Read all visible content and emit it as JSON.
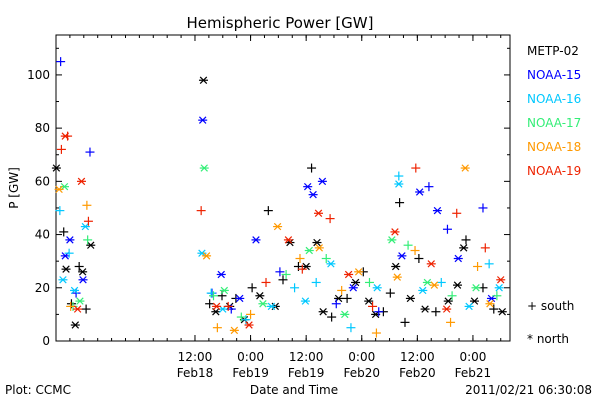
{
  "chart_data": {
    "type": "scatter",
    "title": "Hemispheric Power [GW]",
    "xlabel": "Date and Time",
    "ylabel": "P [GW]",
    "xlim": [
      "2011-02-17 06:00",
      "2011-02-21 08:00"
    ],
    "ylim": [
      0,
      115
    ],
    "y_ticks": [
      0,
      20,
      40,
      60,
      80,
      100
    ],
    "x_ticks": [
      {
        "top": "12:00",
        "bottom": "Feb18",
        "t": "2011-02-18 12:00"
      },
      {
        "top": "0:00",
        "bottom": "Feb19",
        "t": "2011-02-19 00:00"
      },
      {
        "top": "12:00",
        "bottom": "Feb19",
        "t": "2011-02-19 12:00"
      },
      {
        "top": "0:00",
        "bottom": "Feb20",
        "t": "2011-02-20 00:00"
      },
      {
        "top": "12:00",
        "bottom": "Feb20",
        "t": "2011-02-20 12:00"
      },
      {
        "top": "0:00",
        "bottom": "Feb21",
        "t": "2011-02-21 00:00"
      }
    ],
    "grid": false,
    "legend_position": "right",
    "series": [
      {
        "name": "METP-02",
        "color": "#000000",
        "points": [
          {
            "t": "2011-02-17 06:05",
            "y": 65,
            "h": "north"
          },
          {
            "t": "2011-02-17 07:40",
            "y": 41,
            "h": "south"
          },
          {
            "t": "2011-02-17 08:10",
            "y": 27,
            "h": "north"
          },
          {
            "t": "2011-02-17 09:20",
            "y": 14,
            "h": "south"
          },
          {
            "t": "2011-02-17 10:10",
            "y": 6,
            "h": "north"
          },
          {
            "t": "2011-02-17 11:00",
            "y": 28,
            "h": "south"
          },
          {
            "t": "2011-02-17 11:45",
            "y": 26,
            "h": "north"
          },
          {
            "t": "2011-02-17 12:30",
            "y": 12,
            "h": "south"
          },
          {
            "t": "2011-02-17 13:30",
            "y": 36,
            "h": "north"
          },
          {
            "t": "2011-02-18 13:50",
            "y": 98,
            "h": "north"
          },
          {
            "t": "2011-02-18 15:10",
            "y": 14,
            "h": "south"
          },
          {
            "t": "2011-02-18 16:30",
            "y": 11,
            "h": "north"
          },
          {
            "t": "2011-02-18 17:50",
            "y": 17,
            "h": "south"
          },
          {
            "t": "2011-02-18 19:30",
            "y": 13,
            "h": "north"
          },
          {
            "t": "2011-02-18 20:50",
            "y": 16,
            "h": "south"
          },
          {
            "t": "2011-02-18 22:40",
            "y": 8,
            "h": "north"
          },
          {
            "t": "2011-02-19 00:20",
            "y": 20,
            "h": "south"
          },
          {
            "t": "2011-02-19 02:00",
            "y": 17,
            "h": "north"
          },
          {
            "t": "2011-02-19 03:50",
            "y": 49,
            "h": "south"
          },
          {
            "t": "2011-02-19 05:20",
            "y": 13,
            "h": "north"
          },
          {
            "t": "2011-02-19 07:00",
            "y": 23,
            "h": "south"
          },
          {
            "t": "2011-02-19 08:30",
            "y": 37,
            "h": "north"
          },
          {
            "t": "2011-02-19 10:20",
            "y": 28,
            "h": "south"
          },
          {
            "t": "2011-02-19 12:00",
            "y": 28,
            "h": "north"
          },
          {
            "t": "2011-02-19 13:10",
            "y": 65,
            "h": "south"
          },
          {
            "t": "2011-02-19 14:20",
            "y": 37,
            "h": "north"
          },
          {
            "t": "2011-02-19 15:40",
            "y": 11,
            "h": "north"
          },
          {
            "t": "2011-02-19 17:30",
            "y": 9,
            "h": "south"
          },
          {
            "t": "2011-02-19 19:00",
            "y": 16,
            "h": "north"
          },
          {
            "t": "2011-02-19 20:50",
            "y": 16,
            "h": "south"
          },
          {
            "t": "2011-02-19 22:40",
            "y": 22,
            "h": "north"
          },
          {
            "t": "2011-02-20 00:20",
            "y": 26,
            "h": "south"
          },
          {
            "t": "2011-02-20 01:30",
            "y": 15,
            "h": "north"
          },
          {
            "t": "2011-02-20 03:00",
            "y": 10,
            "h": "north"
          },
          {
            "t": "2011-02-20 04:40",
            "y": 11,
            "h": "south"
          },
          {
            "t": "2011-02-20 06:10",
            "y": 18,
            "h": "south"
          },
          {
            "t": "2011-02-20 07:20",
            "y": 28,
            "h": "north"
          },
          {
            "t": "2011-02-20 08:10",
            "y": 52,
            "h": "south"
          },
          {
            "t": "2011-02-20 09:20",
            "y": 7,
            "h": "south"
          },
          {
            "t": "2011-02-20 10:30",
            "y": 16,
            "h": "north"
          },
          {
            "t": "2011-02-20 12:20",
            "y": 31,
            "h": "south"
          },
          {
            "t": "2011-02-20 13:40",
            "y": 12,
            "h": "north"
          },
          {
            "t": "2011-02-20 16:00",
            "y": 11,
            "h": "south"
          },
          {
            "t": "2011-02-20 18:40",
            "y": 15,
            "h": "north"
          },
          {
            "t": "2011-02-20 20:40",
            "y": 21,
            "h": "north"
          },
          {
            "t": "2011-02-20 22:00",
            "y": 35,
            "h": "north"
          },
          {
            "t": "2011-02-20 22:30",
            "y": 38,
            "h": "south"
          },
          {
            "t": "2011-02-21 00:20",
            "y": 15,
            "h": "north"
          },
          {
            "t": "2011-02-21 02:10",
            "y": 20,
            "h": "south"
          },
          {
            "t": "2011-02-21 04:30",
            "y": 12,
            "h": "south"
          },
          {
            "t": "2011-02-21 06:20",
            "y": 11,
            "h": "north"
          }
        ]
      },
      {
        "name": "NOAA-15",
        "color": "#0000ff",
        "points": [
          {
            "t": "2011-02-17 07:00",
            "y": 105,
            "h": "south"
          },
          {
            "t": "2011-02-17 08:00",
            "y": 32,
            "h": "north"
          },
          {
            "t": "2011-02-17 09:00",
            "y": 38,
            "h": "north"
          },
          {
            "t": "2011-02-17 10:20",
            "y": 18,
            "h": "south"
          },
          {
            "t": "2011-02-17 11:50",
            "y": 23,
            "h": "north"
          },
          {
            "t": "2011-02-17 13:20",
            "y": 71,
            "h": "south"
          },
          {
            "t": "2011-02-18 13:40",
            "y": 83,
            "h": "north"
          },
          {
            "t": "2011-02-18 15:40",
            "y": 18,
            "h": "south"
          },
          {
            "t": "2011-02-18 17:40",
            "y": 25,
            "h": "north"
          },
          {
            "t": "2011-02-18 19:50",
            "y": 12,
            "h": "south"
          },
          {
            "t": "2011-02-18 21:40",
            "y": 16,
            "h": "north"
          },
          {
            "t": "2011-02-19 01:10",
            "y": 38,
            "h": "north"
          },
          {
            "t": "2011-02-19 06:20",
            "y": 26,
            "h": "south"
          },
          {
            "t": "2011-02-19 12:20",
            "y": 58,
            "h": "north"
          },
          {
            "t": "2011-02-19 13:30",
            "y": 55,
            "h": "north"
          },
          {
            "t": "2011-02-19 15:30",
            "y": 60,
            "h": "north"
          },
          {
            "t": "2011-02-19 18:30",
            "y": 14,
            "h": "south"
          },
          {
            "t": "2011-02-19 22:10",
            "y": 20,
            "h": "north"
          },
          {
            "t": "2011-02-20 03:40",
            "y": 11,
            "h": "south"
          },
          {
            "t": "2011-02-20 08:40",
            "y": 32,
            "h": "north"
          },
          {
            "t": "2011-02-20 12:30",
            "y": 56,
            "h": "north"
          },
          {
            "t": "2011-02-20 14:30",
            "y": 58,
            "h": "south"
          },
          {
            "t": "2011-02-20 16:20",
            "y": 49,
            "h": "north"
          },
          {
            "t": "2011-02-20 18:30",
            "y": 42,
            "h": "south"
          },
          {
            "t": "2011-02-20 20:50",
            "y": 31,
            "h": "north"
          },
          {
            "t": "2011-02-21 02:10",
            "y": 50,
            "h": "south"
          },
          {
            "t": "2011-02-21 04:00",
            "y": 16,
            "h": "north"
          }
        ]
      },
      {
        "name": "NOAA-16",
        "color": "#00c8ff",
        "points": [
          {
            "t": "2011-02-17 06:50",
            "y": 49,
            "h": "south"
          },
          {
            "t": "2011-02-17 07:30",
            "y": 23,
            "h": "north"
          },
          {
            "t": "2011-02-17 08:50",
            "y": 33,
            "h": "south"
          },
          {
            "t": "2011-02-17 10:00",
            "y": 19,
            "h": "north"
          },
          {
            "t": "2011-02-17 12:20",
            "y": 43,
            "h": "north"
          },
          {
            "t": "2011-02-18 13:30",
            "y": 33,
            "h": "north"
          },
          {
            "t": "2011-02-18 15:30",
            "y": 18,
            "h": "south"
          },
          {
            "t": "2011-02-18 18:00",
            "y": 12,
            "h": "north"
          },
          {
            "t": "2011-02-18 23:00",
            "y": 8,
            "h": "south"
          },
          {
            "t": "2011-02-19 04:30",
            "y": 13,
            "h": "north"
          },
          {
            "t": "2011-02-19 09:30",
            "y": 20,
            "h": "south"
          },
          {
            "t": "2011-02-19 11:50",
            "y": 15,
            "h": "north"
          },
          {
            "t": "2011-02-19 14:10",
            "y": 22,
            "h": "south"
          },
          {
            "t": "2011-02-19 17:20",
            "y": 29,
            "h": "north"
          },
          {
            "t": "2011-02-19 21:40",
            "y": 5,
            "h": "south"
          },
          {
            "t": "2011-02-20 03:20",
            "y": 20,
            "h": "north"
          },
          {
            "t": "2011-02-20 08:00",
            "y": 62,
            "h": "south"
          },
          {
            "t": "2011-02-20 08:00",
            "y": 59,
            "h": "north"
          },
          {
            "t": "2011-02-20 13:10",
            "y": 19,
            "h": "north"
          },
          {
            "t": "2011-02-20 17:10",
            "y": 22,
            "h": "south"
          },
          {
            "t": "2011-02-20 23:10",
            "y": 13,
            "h": "north"
          },
          {
            "t": "2011-02-21 03:30",
            "y": 29,
            "h": "south"
          },
          {
            "t": "2011-02-21 05:40",
            "y": 20,
            "h": "north"
          }
        ]
      },
      {
        "name": "NOAA-17",
        "color": "#33ee77",
        "points": [
          {
            "t": "2011-02-17 07:50",
            "y": 58,
            "h": "north"
          },
          {
            "t": "2011-02-17 09:40",
            "y": 13,
            "h": "south"
          },
          {
            "t": "2011-02-17 11:10",
            "y": 15,
            "h": "north"
          },
          {
            "t": "2011-02-17 12:50",
            "y": 38,
            "h": "south"
          },
          {
            "t": "2011-02-18 14:00",
            "y": 65,
            "h": "north"
          },
          {
            "t": "2011-02-18 16:00",
            "y": 17,
            "h": "south"
          },
          {
            "t": "2011-02-18 18:20",
            "y": 19,
            "h": "north"
          },
          {
            "t": "2011-02-18 22:00",
            "y": 9,
            "h": "south"
          },
          {
            "t": "2011-02-19 02:40",
            "y": 14,
            "h": "north"
          },
          {
            "t": "2011-02-19 07:40",
            "y": 25,
            "h": "south"
          },
          {
            "t": "2011-02-19 12:40",
            "y": 34,
            "h": "north"
          },
          {
            "t": "2011-02-19 16:20",
            "y": 31,
            "h": "south"
          },
          {
            "t": "2011-02-19 20:20",
            "y": 10,
            "h": "north"
          },
          {
            "t": "2011-02-20 01:40",
            "y": 22,
            "h": "south"
          },
          {
            "t": "2011-02-20 06:30",
            "y": 38,
            "h": "north"
          },
          {
            "t": "2011-02-20 10:00",
            "y": 36,
            "h": "south"
          },
          {
            "t": "2011-02-20 14:10",
            "y": 22,
            "h": "north"
          },
          {
            "t": "2011-02-20 19:30",
            "y": 17,
            "h": "south"
          },
          {
            "t": "2011-02-21 00:40",
            "y": 20,
            "h": "north"
          },
          {
            "t": "2011-02-21 05:10",
            "y": 17,
            "h": "south"
          }
        ]
      },
      {
        "name": "NOAA-18",
        "color": "#ff9900",
        "points": [
          {
            "t": "2011-02-17 06:40",
            "y": 57,
            "h": "north"
          },
          {
            "t": "2011-02-17 09:10",
            "y": 13,
            "h": "south"
          },
          {
            "t": "2011-02-17 12:40",
            "y": 51,
            "h": "south"
          },
          {
            "t": "2011-02-18 14:30",
            "y": 32,
            "h": "north"
          },
          {
            "t": "2011-02-18 16:50",
            "y": 5,
            "h": "south"
          },
          {
            "t": "2011-02-18 20:30",
            "y": 4,
            "h": "north"
          },
          {
            "t": "2011-02-19 00:00",
            "y": 10,
            "h": "south"
          },
          {
            "t": "2011-02-19 05:50",
            "y": 43,
            "h": "north"
          },
          {
            "t": "2011-02-19 10:40",
            "y": 31,
            "h": "south"
          },
          {
            "t": "2011-02-19 14:50",
            "y": 35,
            "h": "north"
          },
          {
            "t": "2011-02-19 19:40",
            "y": 19,
            "h": "south"
          },
          {
            "t": "2011-02-19 23:20",
            "y": 26,
            "h": "north"
          },
          {
            "t": "2011-02-20 03:10",
            "y": 3,
            "h": "south"
          },
          {
            "t": "2011-02-20 07:40",
            "y": 24,
            "h": "north"
          },
          {
            "t": "2011-02-20 11:30",
            "y": 34,
            "h": "south"
          },
          {
            "t": "2011-02-20 15:40",
            "y": 21,
            "h": "north"
          },
          {
            "t": "2011-02-20 19:10",
            "y": 7,
            "h": "south"
          },
          {
            "t": "2011-02-20 22:20",
            "y": 65,
            "h": "north"
          },
          {
            "t": "2011-02-21 01:00",
            "y": 28,
            "h": "south"
          },
          {
            "t": "2011-02-21 03:40",
            "y": 14,
            "h": "north"
          }
        ]
      },
      {
        "name": "NOAA-19",
        "color": "#ee2200",
        "points": [
          {
            "t": "2011-02-17 07:10",
            "y": 72,
            "h": "south"
          },
          {
            "t": "2011-02-17 08:00",
            "y": 77,
            "h": "north"
          },
          {
            "t": "2011-02-17 08:30",
            "y": 77,
            "h": "south"
          },
          {
            "t": "2011-02-17 10:40",
            "y": 12,
            "h": "north"
          },
          {
            "t": "2011-02-17 11:30",
            "y": 60,
            "h": "north"
          },
          {
            "t": "2011-02-17 13:00",
            "y": 45,
            "h": "south"
          },
          {
            "t": "2011-02-18 13:20",
            "y": 49,
            "h": "south"
          },
          {
            "t": "2011-02-18 16:40",
            "y": 13,
            "h": "north"
          },
          {
            "t": "2011-02-18 19:10",
            "y": 13,
            "h": "south"
          },
          {
            "t": "2011-02-18 23:40",
            "y": 6,
            "h": "north"
          },
          {
            "t": "2011-02-19 03:20",
            "y": 22,
            "h": "south"
          },
          {
            "t": "2011-02-19 08:10",
            "y": 38,
            "h": "north"
          },
          {
            "t": "2011-02-19 11:10",
            "y": 27,
            "h": "south"
          },
          {
            "t": "2011-02-19 14:40",
            "y": 48,
            "h": "north"
          },
          {
            "t": "2011-02-19 17:10",
            "y": 46,
            "h": "south"
          },
          {
            "t": "2011-02-19 21:10",
            "y": 25,
            "h": "north"
          },
          {
            "t": "2011-02-20 02:20",
            "y": 13,
            "h": "south"
          },
          {
            "t": "2011-02-20 07:10",
            "y": 41,
            "h": "north"
          },
          {
            "t": "2011-02-20 11:40",
            "y": 65,
            "h": "south"
          },
          {
            "t": "2011-02-20 15:00",
            "y": 29,
            "h": "north"
          },
          {
            "t": "2011-02-20 18:20",
            "y": 12,
            "h": "north"
          },
          {
            "t": "2011-02-20 20:30",
            "y": 48,
            "h": "south"
          },
          {
            "t": "2011-02-21 02:40",
            "y": 35,
            "h": "south"
          },
          {
            "t": "2011-02-21 06:00",
            "y": 23,
            "h": "north"
          }
        ]
      }
    ]
  },
  "legend": {
    "satellites": [
      "METP-02",
      "NOAA-15",
      "NOAA-16",
      "NOAA-17",
      "NOAA-18",
      "NOAA-19"
    ],
    "south_label": "+ south",
    "north_label": "* north"
  },
  "footer": {
    "source": "Plot: CCMC",
    "timestamp": "2011/02/21 06:30:08"
  },
  "colors": {
    "METP-02": "#000000",
    "NOAA-15": "#0000ff",
    "NOAA-16": "#00c8ff",
    "NOAA-17": "#33ee77",
    "NOAA-18": "#ff9900",
    "NOAA-19": "#ee2200"
  }
}
